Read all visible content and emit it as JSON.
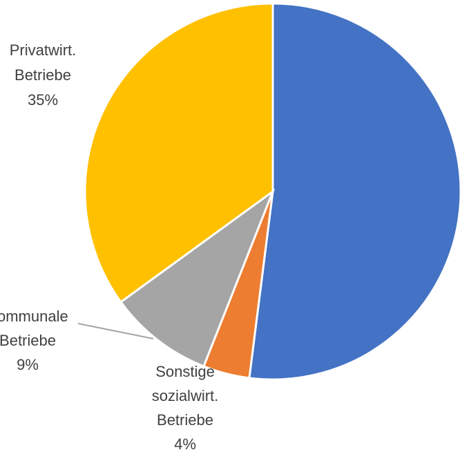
{
  "chart_data": {
    "type": "pie",
    "categories": [
      null,
      [
        "Sonstige",
        "sozialwirt.",
        "Betriebe"
      ],
      [
        "Kommunale",
        "Betriebe"
      ],
      [
        "Privatwirt.",
        "Betriebe"
      ]
    ],
    "values": [
      52,
      4,
      9,
      35
    ],
    "value_labels": [
      null,
      "4%",
      "9%",
      "35%"
    ],
    "colors": [
      "#4472c4",
      "#ed7d31",
      "#a5a5a5",
      "#ffc000"
    ]
  }
}
